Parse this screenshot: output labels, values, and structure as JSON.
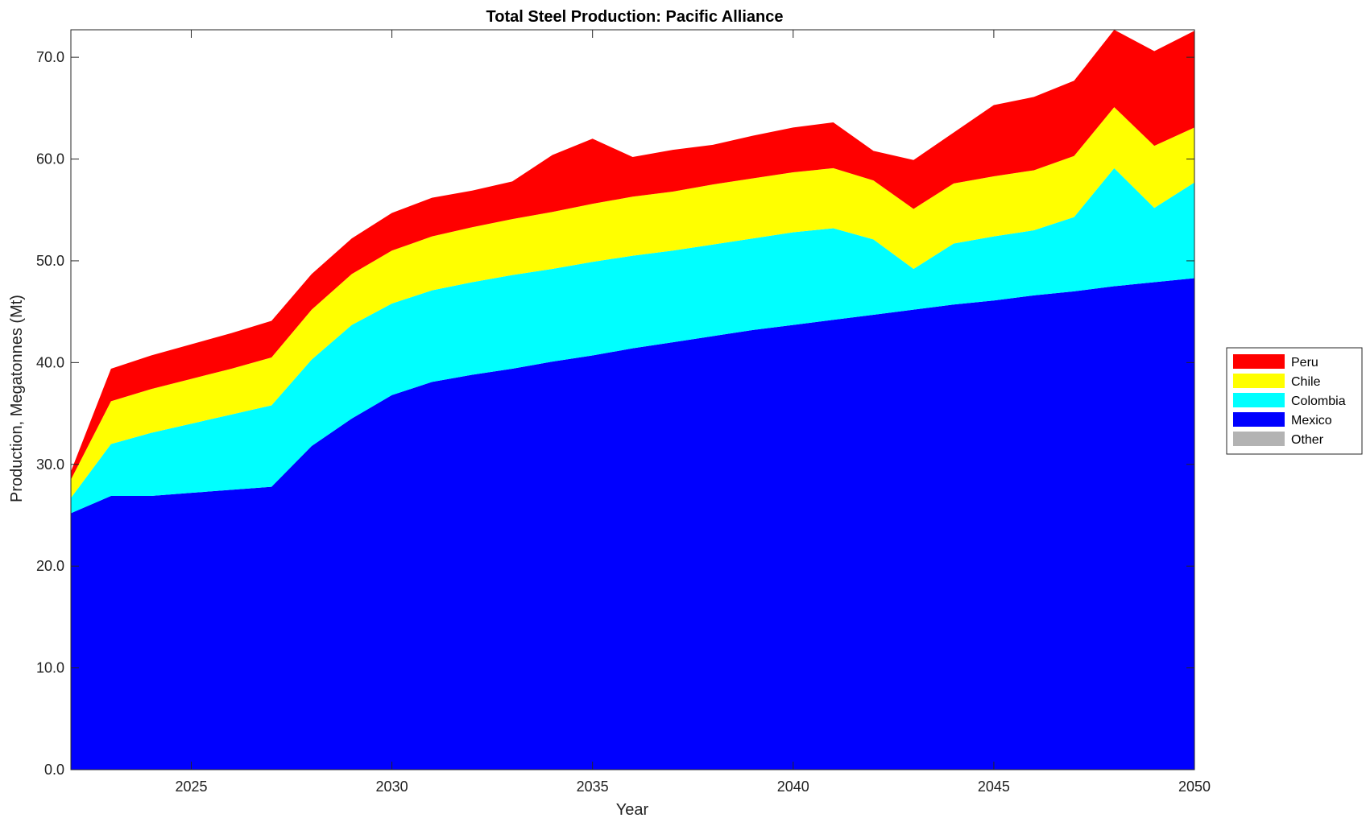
{
  "chart_data": {
    "type": "area",
    "stacked": true,
    "title": "Total Steel Production: Pacific Alliance",
    "xlabel": "Year",
    "ylabel": "Production, Megatonnes (Mt)",
    "xlim": [
      2022,
      2050
    ],
    "ylim": [
      0,
      72.7
    ],
    "xticks": [
      "2025",
      "2030",
      "2035",
      "2040",
      "2045",
      "2050"
    ],
    "yticks": [
      "0.0",
      "10.0",
      "20.0",
      "30.0",
      "40.0",
      "50.0",
      "60.0",
      "70.0"
    ],
    "grid": false,
    "legend_position": "right",
    "x": [
      2022,
      2023,
      2024,
      2025,
      2026,
      2027,
      2028,
      2029,
      2030,
      2031,
      2032,
      2033,
      2034,
      2035,
      2036,
      2037,
      2038,
      2039,
      2040,
      2041,
      2042,
      2043,
      2044,
      2045,
      2046,
      2047,
      2048,
      2049,
      2050
    ],
    "series": [
      {
        "name": "Mexico",
        "color": "#0000ff",
        "values": [
          25.2,
          26.9,
          26.9,
          27.2,
          27.5,
          27.8,
          31.8,
          34.5,
          36.8,
          38.1,
          38.8,
          39.4,
          40.1,
          40.7,
          41.4,
          42.0,
          42.6,
          43.2,
          43.7,
          44.2,
          44.7,
          45.2,
          45.7,
          46.1,
          46.6,
          47.0,
          47.5,
          47.9,
          48.3
        ]
      },
      {
        "name": "Colombia",
        "color": "#00ffff",
        "values": [
          1.5,
          5.1,
          6.2,
          6.8,
          7.4,
          8.0,
          8.5,
          9.2,
          9.0,
          9.0,
          9.1,
          9.2,
          9.1,
          9.2,
          9.1,
          9.0,
          9.0,
          9.0,
          9.1,
          9.0,
          7.4,
          4.0,
          6.0,
          6.3,
          6.4,
          7.3,
          11.6,
          7.3,
          9.4
        ]
      },
      {
        "name": "Chile",
        "color": "#ffff00",
        "values": [
          1.8,
          4.2,
          4.3,
          4.4,
          4.5,
          4.7,
          4.9,
          5.0,
          5.2,
          5.3,
          5.4,
          5.5,
          5.6,
          5.7,
          5.8,
          5.8,
          5.9,
          5.9,
          5.9,
          5.9,
          5.8,
          5.9,
          5.9,
          5.9,
          5.9,
          6.0,
          6.0,
          6.1,
          5.4
        ]
      },
      {
        "name": "Peru",
        "color": "#ff0000",
        "values": [
          0.8,
          3.2,
          3.3,
          3.4,
          3.5,
          3.6,
          3.5,
          3.5,
          3.7,
          3.8,
          3.6,
          3.7,
          5.6,
          6.4,
          3.9,
          4.1,
          3.9,
          4.2,
          4.4,
          4.5,
          2.9,
          4.8,
          5.0,
          7.0,
          7.2,
          7.4,
          7.6,
          9.3,
          9.5
        ]
      },
      {
        "name": "Other",
        "color": "#b3b3b3",
        "values": [
          0,
          0,
          0,
          0,
          0,
          0,
          0,
          0,
          0,
          0,
          0,
          0,
          0,
          0,
          0,
          0,
          0,
          0,
          0,
          0,
          0,
          0,
          0,
          0,
          0,
          0,
          0,
          0,
          0
        ]
      }
    ],
    "legend_order": [
      "Peru",
      "Chile",
      "Colombia",
      "Mexico",
      "Other"
    ]
  }
}
